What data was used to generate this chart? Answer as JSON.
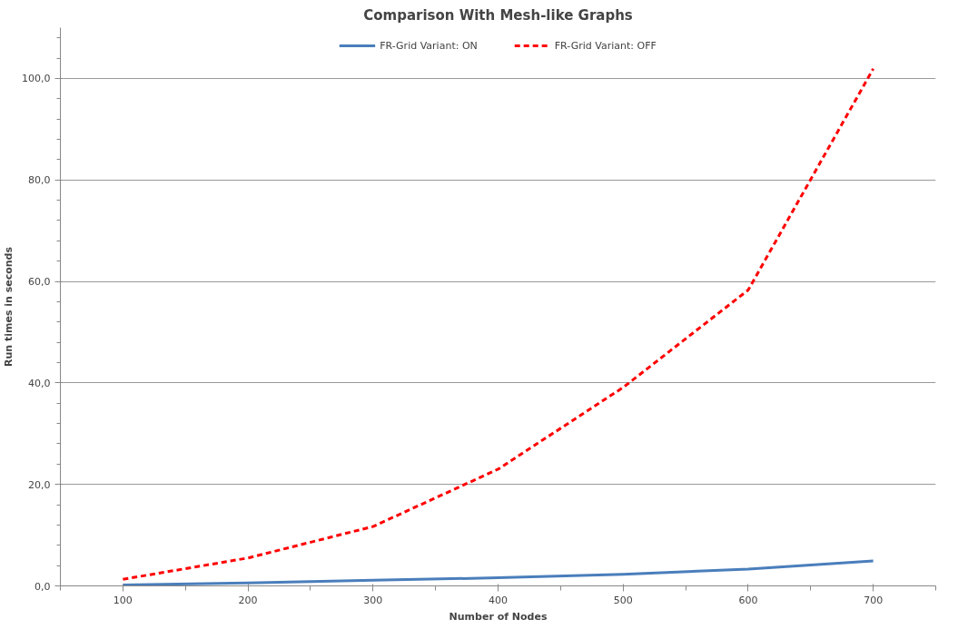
{
  "chart_data": {
    "type": "line",
    "title": "Comparison With Mesh-like Graphs",
    "xlabel": "Number of Nodes",
    "ylabel": "Run times in seconds",
    "categories": [
      "100",
      "200",
      "300",
      "400",
      "500",
      "600",
      "700"
    ],
    "series": [
      {
        "name": "FR-Grid Variant: ON",
        "color": "#4a7ebb",
        "line_style": "solid",
        "values": [
          0.2,
          0.6,
          1.1,
          1.6,
          2.3,
          3.3,
          4.9
        ]
      },
      {
        "name": "FR-Grid Variant: OFF",
        "color": "#ff0000",
        "line_style": "dashed",
        "values": [
          1.3,
          5.5,
          11.7,
          23,
          39.1,
          58.3,
          101.9
        ]
      }
    ],
    "ylim": [
      0,
      110
    ],
    "yticks": [
      {
        "value": 0,
        "label": "0,0"
      },
      {
        "value": 20,
        "label": "20,0"
      },
      {
        "value": 40,
        "label": "40,0"
      },
      {
        "value": 60,
        "label": "60,0"
      },
      {
        "value": 80,
        "label": "80,0"
      },
      {
        "value": 100,
        "label": "100,0"
      }
    ],
    "grid": "y",
    "legend": "top",
    "marker": "none"
  }
}
